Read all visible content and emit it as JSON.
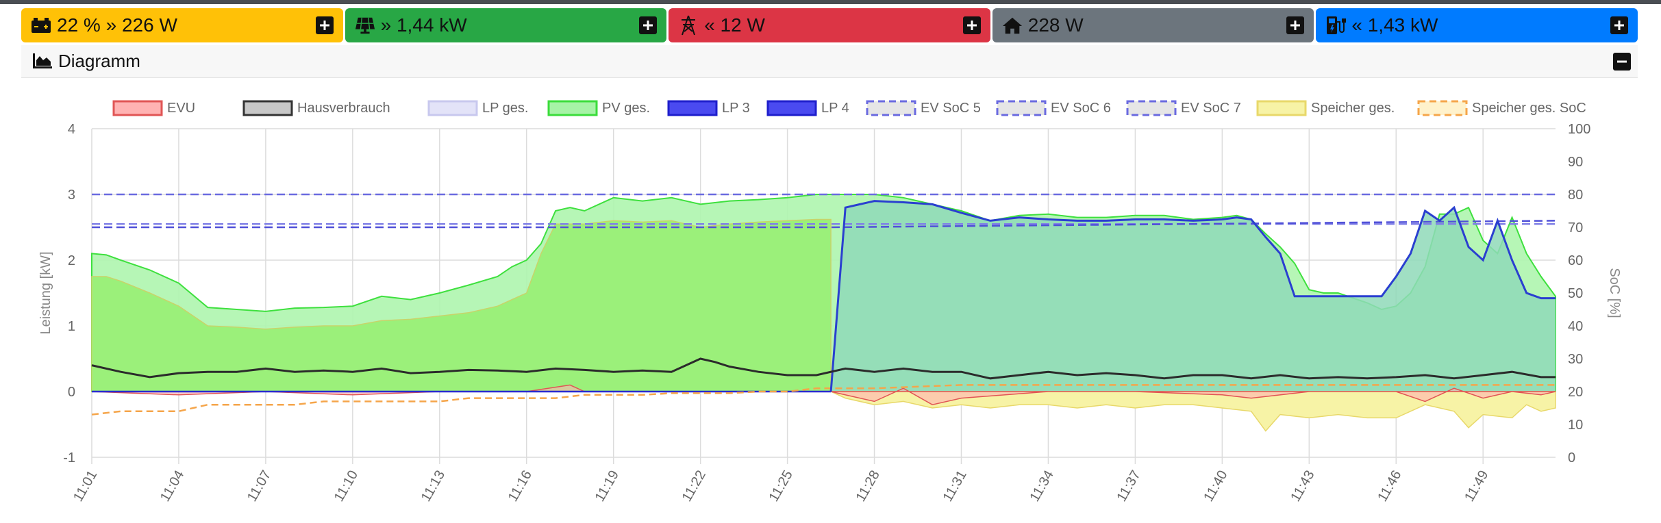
{
  "tiles": [
    {
      "id": "battery",
      "text": "22 % » 226 W",
      "color": "#ffc107",
      "icon": "battery-icon"
    },
    {
      "id": "pv",
      "text": "» 1,44 kW",
      "color": "#28a745",
      "icon": "solar-panel-icon"
    },
    {
      "id": "grid",
      "text": "« 12 W",
      "color": "#dc3545",
      "icon": "power-pylon-icon"
    },
    {
      "id": "house",
      "text": "228 W",
      "color": "#6c757d",
      "icon": "house-icon"
    },
    {
      "id": "chargepoint",
      "text": "« 1,43 kW",
      "color": "#007bff",
      "icon": "charging-station-icon"
    }
  ],
  "card": {
    "title": "Diagramm",
    "icon": "area-chart-icon"
  },
  "chart_data": {
    "type": "line",
    "xlabel": "",
    "ylabel": "Leistung [kW]",
    "y2label": "SoC [%]",
    "ylim": [
      -1,
      4
    ],
    "y2lim": [
      0,
      100
    ],
    "yticks": [
      "-1",
      "0",
      "1",
      "2",
      "3",
      "4"
    ],
    "y2ticks": [
      "0",
      "10",
      "20",
      "30",
      "40",
      "50",
      "60",
      "70",
      "80",
      "90",
      "100"
    ],
    "xticks": [
      "11:01",
      "11:04",
      "11:07",
      "11:10",
      "11:13",
      "11:16",
      "11:19",
      "11:22",
      "11:25",
      "11:28",
      "11:31",
      "11:34",
      "11:37",
      "11:40",
      "11:43",
      "11:46",
      "11:49"
    ],
    "x_minutes_start": "11:01",
    "x_minutes_end": "11:51.5",
    "legend_placement": "top",
    "legend": [
      {
        "name": "EVU",
        "fill": "#ffb3b3",
        "stroke": "#e05555",
        "dashed": false
      },
      {
        "name": "Hausverbrauch",
        "fill": "#c8c8c8",
        "stroke": "#333333",
        "dashed": false
      },
      {
        "name": "LP ges.",
        "fill": "#e3e3f8",
        "stroke": "#c8c8ee",
        "dashed": false
      },
      {
        "name": "PV ges.",
        "fill": "#a6f3a6",
        "stroke": "#3bdc3b",
        "dashed": false
      },
      {
        "name": "LP 3",
        "fill": "#4a4af0",
        "stroke": "#1e1ecc",
        "dashed": false
      },
      {
        "name": "LP 4",
        "fill": "#4a4af0",
        "stroke": "#1e1ecc",
        "dashed": false
      },
      {
        "name": "EV SoC 5",
        "fill": "#e6e6e6",
        "stroke": "#6a6ae0",
        "dashed": true
      },
      {
        "name": "EV SoC 6",
        "fill": "#e6e6e6",
        "stroke": "#6a6ae0",
        "dashed": true
      },
      {
        "name": "EV SoC 7",
        "fill": "#e6e6e6",
        "stroke": "#6a6ae0",
        "dashed": true
      },
      {
        "name": "Speicher ges.",
        "fill": "#f7f3a6",
        "stroke": "#e8d86a",
        "dashed": false
      },
      {
        "name": "Speicher ges. SoC",
        "fill": "#fff2cc",
        "stroke": "#f5a54a",
        "dashed": true
      }
    ],
    "series": {
      "pv": {
        "name": "PV ges.",
        "x": [
          0,
          0.5,
          1,
          2,
          3,
          4,
          5,
          6,
          7,
          8,
          9,
          10,
          11,
          12,
          13,
          14,
          14.5,
          15,
          15.5,
          16,
          16.5,
          17,
          18,
          19,
          20,
          21,
          22,
          23,
          24,
          25,
          26,
          27,
          28,
          29,
          30,
          31,
          32,
          33,
          34,
          35,
          36,
          37,
          38,
          39,
          39.5,
          40,
          40.5,
          41,
          41.5,
          42,
          42.5,
          43,
          44,
          44.5,
          45,
          45.5,
          46,
          46.5,
          47,
          47.5,
          48,
          48.5,
          49,
          49.5,
          50,
          50.5
        ],
        "y": [
          2.1,
          2.08,
          2.0,
          1.85,
          1.65,
          1.28,
          1.25,
          1.22,
          1.27,
          1.28,
          1.3,
          1.45,
          1.4,
          1.5,
          1.62,
          1.75,
          1.9,
          2.0,
          2.25,
          2.75,
          2.8,
          2.75,
          2.95,
          2.9,
          2.95,
          2.85,
          2.9,
          2.92,
          2.95,
          3.0,
          3.0,
          3.0,
          2.95,
          2.85,
          2.75,
          2.6,
          2.68,
          2.7,
          2.65,
          2.65,
          2.68,
          2.68,
          2.62,
          2.65,
          2.68,
          2.62,
          2.4,
          2.2,
          1.95,
          1.55,
          1.5,
          1.5,
          1.35,
          1.25,
          1.3,
          1.5,
          1.9,
          2.7,
          2.7,
          2.8,
          2.3,
          2.1,
          2.65,
          2.1,
          1.75,
          1.45
        ]
      },
      "pv_inner": {
        "name": "PV ges.",
        "x": [
          0,
          0.5,
          1,
          2,
          3,
          4,
          5,
          6,
          7,
          8,
          9,
          10,
          11,
          12,
          13,
          14,
          14.5,
          15,
          15.5,
          16,
          16.5,
          17,
          18,
          19,
          20,
          21,
          22,
          23,
          24,
          25,
          25.5
        ],
        "y": [
          1.75,
          1.75,
          1.68,
          1.5,
          1.3,
          1.0,
          0.98,
          0.95,
          0.98,
          1.0,
          1.0,
          1.08,
          1.1,
          1.15,
          1.2,
          1.3,
          1.4,
          1.5,
          2.1,
          2.55,
          2.55,
          2.55,
          2.6,
          2.58,
          2.6,
          2.5,
          2.55,
          2.58,
          2.6,
          2.62,
          2.62
        ]
      },
      "lp": {
        "name": "LP 3",
        "x": [
          25.5,
          26,
          26.5,
          27,
          28,
          29,
          30,
          31,
          32,
          33,
          34,
          35,
          36,
          37,
          38,
          39,
          39.5,
          40,
          40.5,
          41,
          41.5,
          42,
          43,
          44,
          44.5,
          45,
          45.5,
          46,
          46.5,
          47,
          47.5,
          48,
          48.5,
          49,
          49.5,
          50,
          50.5
        ],
        "y": [
          0.0,
          2.8,
          2.85,
          2.9,
          2.88,
          2.85,
          2.72,
          2.6,
          2.65,
          2.62,
          2.6,
          2.6,
          2.62,
          2.62,
          2.6,
          2.62,
          2.65,
          2.62,
          2.35,
          2.1,
          1.45,
          1.45,
          1.45,
          1.45,
          1.45,
          1.75,
          2.1,
          2.75,
          2.6,
          2.8,
          2.2,
          2.0,
          2.6,
          2.0,
          1.5,
          1.42,
          1.42
        ]
      },
      "house": {
        "name": "Hausverbrauch",
        "x": [
          0,
          1,
          2,
          3,
          4,
          5,
          6,
          7,
          8,
          9,
          10,
          11,
          12,
          13,
          14,
          15,
          16,
          17,
          18,
          19,
          20,
          21,
          21.5,
          22,
          23,
          24,
          25,
          26,
          27,
          28,
          29,
          30,
          31,
          32,
          33,
          34,
          35,
          36,
          37,
          38,
          39,
          40,
          41,
          42,
          43,
          44,
          45,
          46,
          47,
          48,
          49,
          50,
          50.5
        ],
        "y": [
          0.4,
          0.3,
          0.22,
          0.28,
          0.3,
          0.3,
          0.35,
          0.3,
          0.32,
          0.3,
          0.35,
          0.28,
          0.3,
          0.33,
          0.32,
          0.3,
          0.35,
          0.33,
          0.3,
          0.32,
          0.3,
          0.5,
          0.45,
          0.38,
          0.3,
          0.25,
          0.25,
          0.35,
          0.3,
          0.35,
          0.3,
          0.3,
          0.2,
          0.25,
          0.3,
          0.25,
          0.28,
          0.25,
          0.2,
          0.25,
          0.25,
          0.2,
          0.25,
          0.2,
          0.22,
          0.2,
          0.22,
          0.25,
          0.2,
          0.25,
          0.3,
          0.22,
          0.22
        ]
      },
      "storage": {
        "name": "Speicher ges.",
        "x": [
          25.5,
          26,
          27,
          28,
          29,
          30,
          31,
          32,
          33,
          34,
          35,
          36,
          37,
          38,
          39,
          40,
          40.5,
          41,
          42,
          43,
          44,
          45,
          46,
          47,
          47.5,
          48,
          49,
          49.5,
          50,
          50.5
        ],
        "y": [
          0.0,
          -0.1,
          -0.2,
          -0.15,
          -0.25,
          -0.2,
          -0.25,
          -0.2,
          -0.2,
          -0.25,
          -0.2,
          -0.25,
          -0.2,
          -0.2,
          -0.25,
          -0.3,
          -0.6,
          -0.35,
          -0.4,
          -0.35,
          -0.4,
          -0.4,
          -0.2,
          -0.3,
          -0.55,
          -0.35,
          -0.4,
          -0.2,
          -0.3,
          -0.25
        ]
      },
      "evu": {
        "name": "EVU",
        "x": [
          0,
          3,
          6,
          9,
          12,
          15,
          16.5,
          17,
          18,
          21,
          24,
          25.5,
          27,
          28,
          29,
          30,
          33,
          36,
          39,
          40,
          42,
          45,
          46,
          47,
          48,
          49,
          50,
          50.5
        ],
        "y": [
          0.0,
          -0.05,
          0.0,
          -0.05,
          0.0,
          0.0,
          0.1,
          0.0,
          0.0,
          0.0,
          0.0,
          0.0,
          -0.15,
          0.05,
          -0.2,
          -0.1,
          0.0,
          0.0,
          -0.05,
          -0.1,
          0.0,
          0.0,
          -0.15,
          0.05,
          -0.1,
          0.0,
          -0.05,
          0.0
        ]
      },
      "storage_soc": {
        "name": "Speicher ges. SoC",
        "x": [
          0,
          1,
          2,
          3,
          4,
          5,
          6,
          7,
          8,
          9,
          10,
          11,
          12,
          13,
          14,
          15,
          16,
          17,
          18,
          19,
          20,
          21,
          22,
          23,
          24,
          25,
          26,
          27,
          30,
          35,
          40,
          45,
          50,
          50.5
        ],
        "y": [
          13,
          14,
          14,
          14,
          16,
          16,
          16,
          16,
          17,
          17,
          17,
          17,
          17,
          18,
          18,
          18,
          18,
          19,
          19,
          19,
          19.5,
          19.5,
          19.5,
          20,
          20,
          21,
          21,
          21,
          22,
          22,
          22,
          22,
          22,
          22
        ]
      },
      "ev_soc_5": {
        "name": "EV SoC 5",
        "x": [
          0,
          50.5
        ],
        "y": [
          80,
          80
        ]
      },
      "ev_soc_6": {
        "name": "EV SoC 6",
        "x": [
          0,
          50.5
        ],
        "y": [
          71,
          71
        ]
      },
      "ev_soc_7": {
        "name": "EV SoC 7",
        "x": [
          0,
          25.5,
          50.5
        ],
        "y": [
          70,
          70,
          72
        ]
      }
    }
  }
}
